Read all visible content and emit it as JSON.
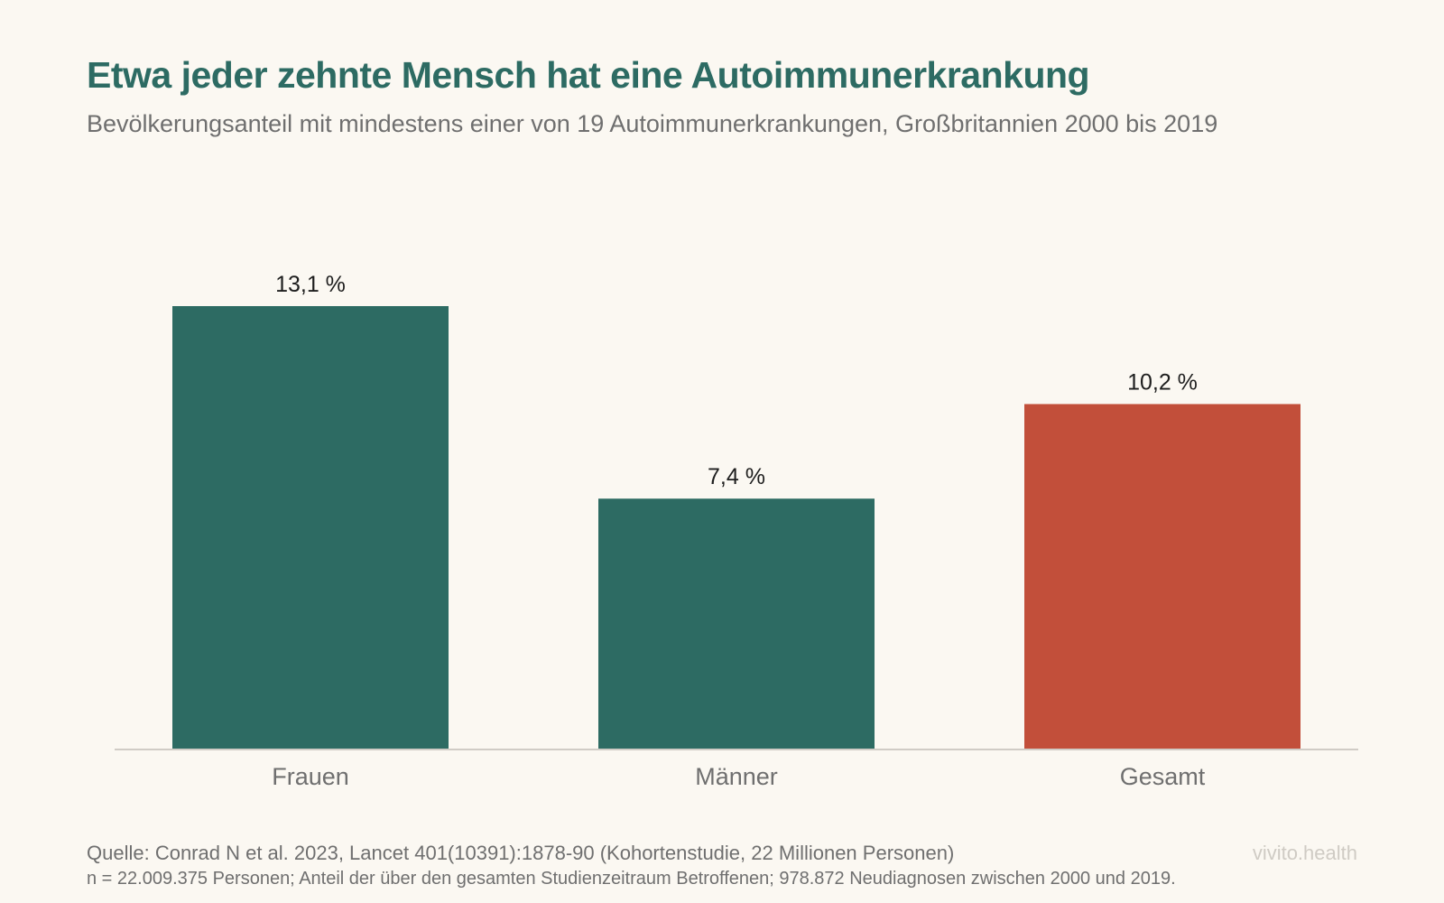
{
  "header": {
    "title": "Etwa jeder zehnte Mensch hat eine Autoimmunerkrankung",
    "subtitle": "Bevölkerungsanteil mit mindestens einer von 19 Autoimmunerkrankungen, Großbritannien 2000 bis 2019"
  },
  "chart_data": {
    "type": "bar",
    "title": "Etwa jeder zehnte Mensch hat eine Autoimmunerkrankung",
    "subtitle": "Bevölkerungsanteil mit mindestens einer von 19 Autoimmunerkrankungen, Großbritannien 2000 bis 2019",
    "categories": [
      "Frauen",
      "Männer",
      "Gesamt"
    ],
    "values": [
      13.1,
      7.4,
      10.2
    ],
    "value_labels": [
      "13,1 %",
      "7,4 %",
      "10,2 %"
    ],
    "colors": [
      "#2D6B63",
      "#2D6B63",
      "#C24F3A"
    ],
    "xlabel": "",
    "ylabel": "",
    "ylim": [
      0,
      13.1
    ],
    "grid": false,
    "legend": "none"
  },
  "footer": {
    "source": "Quelle: Conrad N et al. 2023, Lancet 401(10391):1878-90 (Kohortenstudie, 22 Millionen Personen)",
    "note": "n = 22.009.375 Personen; Anteil der über den gesamten Studienzeitraum Betroffenen; 978.872 Neudiagnosen zwischen 2000 und 2019.",
    "brand": "vivito.health"
  },
  "colors": {
    "background": "#FBF8F2",
    "title": "#2D6B63",
    "axis": "#D0CCC6"
  }
}
